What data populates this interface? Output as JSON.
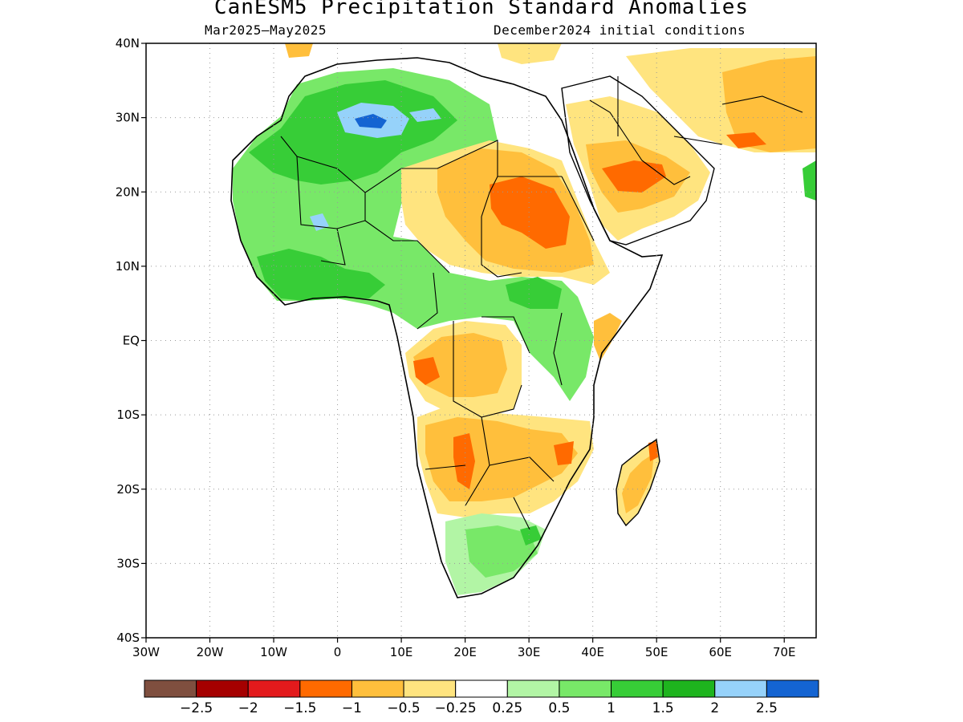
{
  "header": {
    "title": "CanESM5 Precipitation Standard Anomalies",
    "period": "Mar2025–May2025",
    "init": "December2024 initial conditions"
  },
  "map": {
    "lat_labels": [
      "40N",
      "30N",
      "20N",
      "10N",
      "EQ",
      "10S",
      "20S",
      "30S",
      "40S"
    ],
    "lon_labels": [
      "30W",
      "20W",
      "10W",
      "0",
      "10E",
      "20E",
      "30E",
      "40E",
      "50E",
      "60E",
      "70E"
    ],
    "extent": {
      "lon_min": -30,
      "lon_max": 75,
      "lat_min": -40,
      "lat_max": 40
    },
    "gridlines": true,
    "gridline_style": "dotted"
  },
  "colorbar": {
    "colors": [
      "#7f4f3f",
      "#a50000",
      "#e31a1c",
      "#ff6a00",
      "#ffbf3c",
      "#ffe47f",
      "#ffffff",
      "#b2f5a5",
      "#78e868",
      "#37cd37",
      "#1eb41e",
      "#96d2fa",
      "#1464d2"
    ],
    "labels": [
      "−2.5",
      "−2",
      "−1.5",
      "−1",
      "−0.5",
      "−0.25",
      "0.25",
      "0.5",
      "1",
      "1.5",
      "2",
      "2.5"
    ]
  },
  "regions": [
    {
      "name": "sahara-west-wet",
      "color": "#37cd37"
    },
    {
      "name": "sahara-blue",
      "color": "#96d2fa"
    },
    {
      "name": "sudan-dry",
      "color": "#ff6a00"
    },
    {
      "name": "arabia-dry",
      "color": "#ffbf3c"
    },
    {
      "name": "congo-dry",
      "color": "#ffbf3c"
    },
    {
      "name": "southern-wet",
      "color": "#78e868"
    }
  ]
}
